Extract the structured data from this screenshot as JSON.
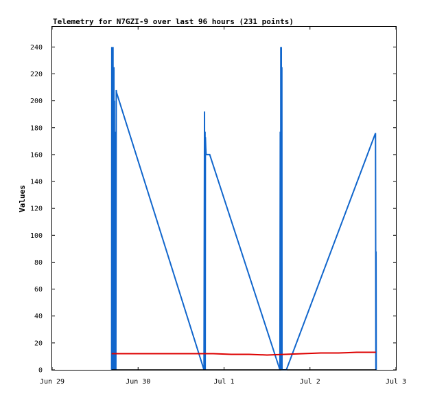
{
  "chart_data": {
    "type": "line",
    "title": "Telemetry for N7GZI-9 over last 96 hours (231 points)",
    "ylabel": "Values",
    "xlabel": "",
    "xlim": [
      0,
      96
    ],
    "ylim": [
      0,
      255
    ],
    "x_ticks": [
      {
        "label": "Jun 29",
        "x": 0
      },
      {
        "label": "Jun 30",
        "x": 24
      },
      {
        "label": "Jul 1",
        "x": 48
      },
      {
        "label": "Jul 2",
        "x": 72
      },
      {
        "label": "Jul 3",
        "x": 96
      }
    ],
    "y_ticks": [
      0,
      20,
      40,
      60,
      80,
      100,
      120,
      140,
      160,
      180,
      200,
      220,
      240
    ],
    "grid": false,
    "legend": "none",
    "series": [
      {
        "color": "#1166cc",
        "points": [
          [
            16.6,
            0
          ],
          [
            16.65,
            240
          ],
          [
            16.7,
            0
          ],
          [
            16.75,
            240
          ],
          [
            16.8,
            0
          ],
          [
            16.85,
            112
          ],
          [
            16.9,
            0
          ],
          [
            17.0,
            240
          ],
          [
            17.05,
            0
          ],
          [
            17.1,
            225
          ],
          [
            17.15,
            0
          ],
          [
            17.25,
            225
          ],
          [
            17.3,
            0
          ],
          [
            17.4,
            200
          ],
          [
            17.45,
            0
          ],
          [
            17.6,
            160
          ],
          [
            17.65,
            0
          ],
          [
            17.7,
            177
          ],
          [
            17.8,
            0
          ],
          [
            17.9,
            208
          ],
          [
            18.0,
            206
          ],
          [
            42.4,
            0
          ],
          [
            42.55,
            192
          ],
          [
            42.6,
            0
          ],
          [
            42.7,
            177
          ],
          [
            42.75,
            0
          ],
          [
            42.8,
            173
          ],
          [
            42.9,
            165
          ],
          [
            43.0,
            160
          ],
          [
            44.0,
            160
          ],
          [
            63.6,
            0
          ],
          [
            63.7,
            177
          ],
          [
            63.8,
            0
          ],
          [
            63.85,
            240
          ],
          [
            63.9,
            0
          ],
          [
            64.0,
            240
          ],
          [
            64.05,
            0
          ],
          [
            64.15,
            225
          ],
          [
            64.2,
            0
          ],
          [
            64.3,
            0
          ],
          [
            65.4,
            0
          ],
          [
            90.3,
            176
          ],
          [
            90.4,
            0
          ],
          [
            90.45,
            88
          ],
          [
            90.5,
            0
          ]
        ]
      },
      {
        "color": "#dd0000",
        "points": [
          [
            16.6,
            12
          ],
          [
            20,
            12
          ],
          [
            30,
            12
          ],
          [
            40,
            12
          ],
          [
            45,
            12
          ],
          [
            50,
            11.5
          ],
          [
            55,
            11.5
          ],
          [
            60,
            11
          ],
          [
            65,
            11.5
          ],
          [
            70,
            12
          ],
          [
            75,
            12.5
          ],
          [
            80,
            12.5
          ],
          [
            85,
            13
          ],
          [
            90.4,
            13
          ]
        ]
      },
      {
        "color": "#000000",
        "points": [
          [
            16.6,
            0
          ],
          [
            90.5,
            0
          ]
        ]
      }
    ]
  }
}
